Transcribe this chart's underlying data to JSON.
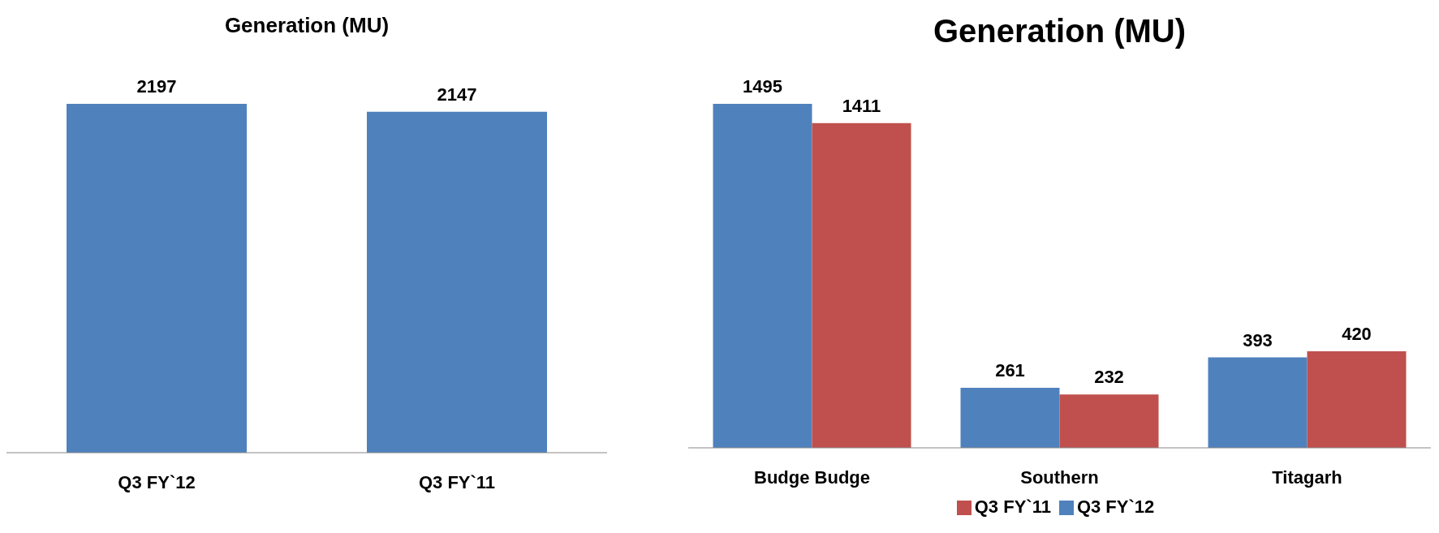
{
  "chart_data": [
    {
      "type": "bar",
      "title": "Generation (MU)",
      "categories": [
        "Q3 FY`12",
        "Q3 FY`11"
      ],
      "values": [
        2197,
        2147
      ],
      "color": "#4f81bd",
      "data_labels": true
    },
    {
      "type": "bar",
      "title": "Generation (MU)",
      "categories": [
        "Budge Budge",
        "Southern",
        "Titagarh"
      ],
      "series": [
        {
          "name": "Q3 FY`12",
          "color": "#4f81bd",
          "values": [
            1495,
            261,
            393
          ]
        },
        {
          "name": "Q3 FY`11",
          "color": "#c0504d",
          "values": [
            1411,
            232,
            420
          ]
        }
      ],
      "legend": "bottom",
      "data_labels": true
    }
  ]
}
